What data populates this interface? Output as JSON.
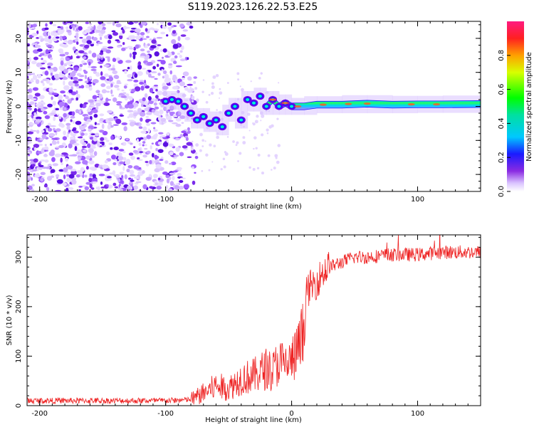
{
  "title": "S119.2023.126.22.53.E25",
  "spectrogram": {
    "type": "heatmap",
    "xlabel": "Height of straight line (km)",
    "ylabel": "Frequency (Hz)",
    "xlim": [
      -210,
      150
    ],
    "ylim": [
      -25,
      25
    ],
    "xticks": [
      -200,
      -100,
      0,
      100
    ],
    "yticks": [
      -20,
      -10,
      0,
      10,
      20
    ],
    "colorbar": {
      "label": "Normalized spectral amplitude",
      "range": [
        0,
        1
      ],
      "ticks": [
        0.0,
        0.2,
        0.4,
        0.6,
        0.8
      ]
    },
    "ridge": [
      [
        -100,
        1.5
      ],
      [
        -95,
        2
      ],
      [
        -90,
        1.5
      ],
      [
        -85,
        0
      ],
      [
        -80,
        -2
      ],
      [
        -75,
        -4
      ],
      [
        -70,
        -3
      ],
      [
        -65,
        -5
      ],
      [
        -60,
        -4
      ],
      [
        -55,
        -6
      ],
      [
        -50,
        -2
      ],
      [
        -45,
        0
      ],
      [
        -40,
        -4
      ],
      [
        -35,
        2
      ],
      [
        -30,
        1
      ],
      [
        -25,
        3
      ],
      [
        -20,
        0
      ],
      [
        -15,
        2
      ],
      [
        -10,
        0
      ],
      [
        -5,
        1
      ],
      [
        0,
        0
      ],
      [
        10,
        0
      ],
      [
        20,
        0.5
      ],
      [
        40,
        0.5
      ],
      [
        60,
        0.8
      ],
      [
        80,
        0.5
      ],
      [
        100,
        0.6
      ],
      [
        120,
        0.6
      ],
      [
        150,
        0.7
      ]
    ],
    "ridge_note": "strong signal band near 0 Hz for heights above about -40 km; speckled noise below -80 km"
  },
  "snr": {
    "type": "line",
    "xlabel": "Height of straight line (km)",
    "ylabel": "SNR (10 * v/v)",
    "xlim": [
      -210,
      150
    ],
    "ylim": [
      0,
      345
    ],
    "xticks": [
      -200,
      -100,
      0,
      100
    ],
    "yticks": [
      0,
      100,
      200,
      300
    ],
    "color": "#ee2222",
    "series": [
      {
        "name": "SNR",
        "x": [
          -210,
          -180,
          -150,
          -120,
          -100,
          -80,
          -70,
          -60,
          -50,
          -40,
          -30,
          -20,
          -15,
          -10,
          -5,
          0,
          5,
          10,
          12,
          15,
          20,
          25,
          30,
          40,
          50,
          60,
          80,
          100,
          120,
          150
        ],
        "y": [
          10,
          10,
          10,
          10,
          10,
          12,
          25,
          40,
          35,
          55,
          60,
          75,
          70,
          90,
          80,
          90,
          110,
          150,
          230,
          240,
          250,
          270,
          280,
          290,
          300,
          300,
          305,
          305,
          310,
          310
        ]
      }
    ]
  }
}
